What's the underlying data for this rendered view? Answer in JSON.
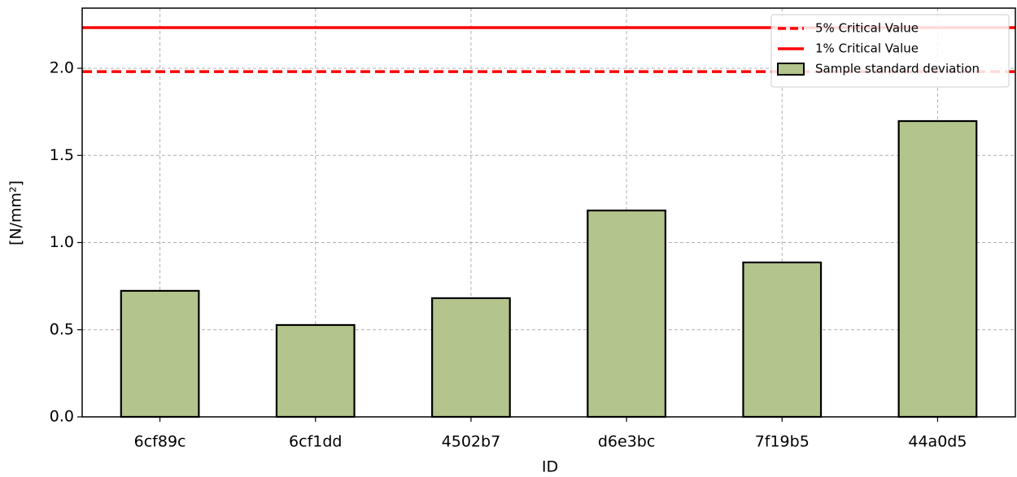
{
  "chart_data": {
    "type": "bar",
    "xlabel": "ID",
    "ylabel": "[N/mm²]",
    "categories": [
      "6cf89c",
      "6cf1dd",
      "4502b7",
      "d6e3bc",
      "7f19b5",
      "44a0d5"
    ],
    "series": [
      {
        "name": "Sample standard deviation",
        "color": "#b3c58c",
        "values": [
          0.723,
          0.527,
          0.681,
          1.184,
          0.886,
          1.697
        ]
      }
    ],
    "hlines": [
      {
        "name": "5% Critical Value",
        "value": 1.981,
        "color": "#ff0000",
        "style": "dashed"
      },
      {
        "name": "1% Critical Value",
        "value": 2.233,
        "color": "#ff0000",
        "style": "solid"
      }
    ],
    "ylim": [
      0,
      2.345
    ],
    "yticks": [
      {
        "value": 0,
        "label": "0.0"
      },
      0.5,
      {
        "value": 1,
        "label": "1.0"
      },
      1.5,
      {
        "value": 2,
        "label": "2.0"
      }
    ],
    "grid": true,
    "legend": "upper right"
  }
}
